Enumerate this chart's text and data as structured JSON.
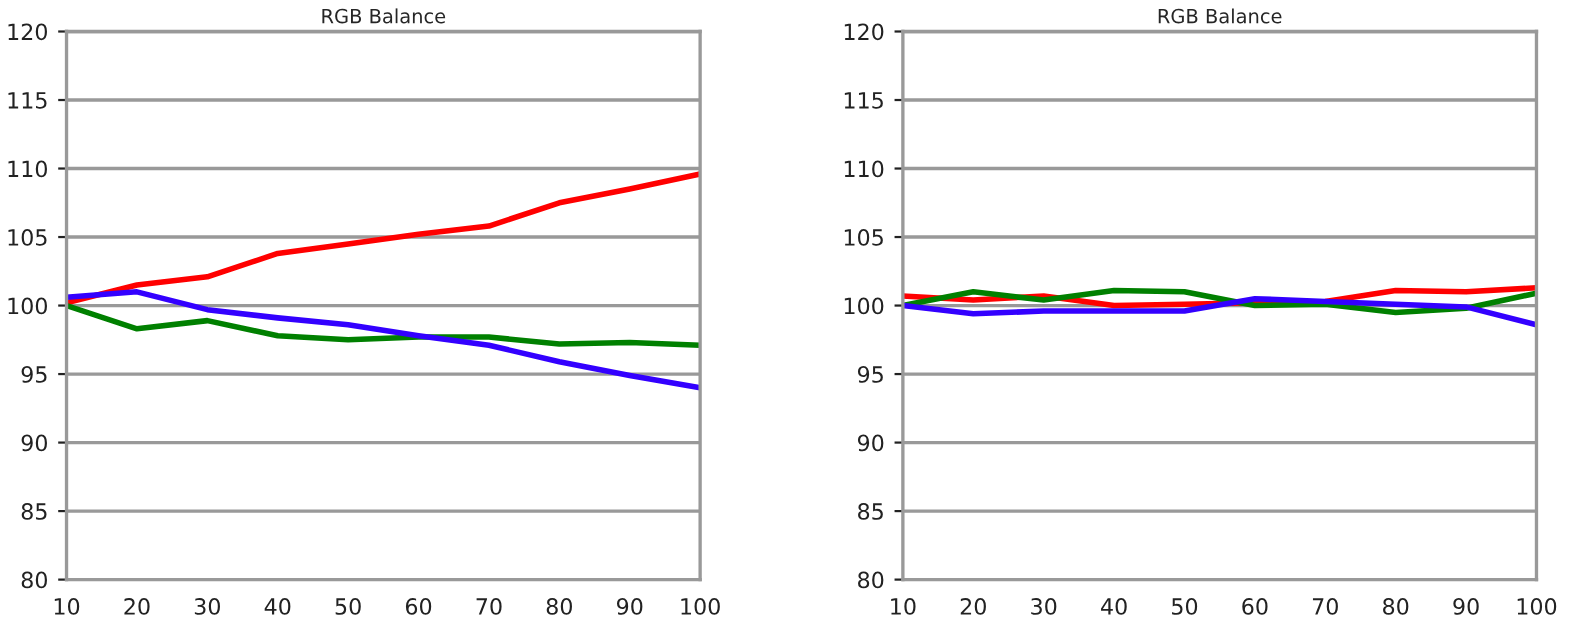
{
  "chart_data": [
    {
      "type": "line",
      "title": "RGB Balance",
      "x": [
        10,
        20,
        30,
        40,
        50,
        60,
        70,
        80,
        90,
        100
      ],
      "xlim": [
        10,
        100
      ],
      "xticks": [
        10,
        20,
        30,
        40,
        50,
        60,
        70,
        80,
        90,
        100
      ],
      "ylim": [
        80,
        120
      ],
      "yticks": [
        80,
        85,
        90,
        95,
        100,
        105,
        110,
        115,
        120
      ],
      "grid": "y",
      "legend": false,
      "series": [
        {
          "color": "#ff0000",
          "values": [
            100.2,
            101.5,
            102.1,
            103.8,
            104.5,
            105.2,
            105.8,
            107.5,
            108.5,
            109.6
          ]
        },
        {
          "color": "#008000",
          "values": [
            100.0,
            98.3,
            98.9,
            97.8,
            97.5,
            97.7,
            97.7,
            97.2,
            97.3,
            97.1
          ]
        },
        {
          "color": "#3300ff",
          "values": [
            100.6,
            101.0,
            99.7,
            99.1,
            98.6,
            97.8,
            97.1,
            95.9,
            94.9,
            94.0
          ]
        }
      ]
    },
    {
      "type": "line",
      "title": "RGB Balance",
      "x": [
        10,
        20,
        30,
        40,
        50,
        60,
        70,
        80,
        90,
        100
      ],
      "xlim": [
        10,
        100
      ],
      "xticks": [
        10,
        20,
        30,
        40,
        50,
        60,
        70,
        80,
        90,
        100
      ],
      "ylim": [
        80,
        120
      ],
      "yticks": [
        80,
        85,
        90,
        95,
        100,
        105,
        110,
        115,
        120
      ],
      "grid": "y",
      "legend": false,
      "series": [
        {
          "color": "#ff0000",
          "values": [
            100.7,
            100.4,
            100.7,
            100.0,
            100.1,
            100.2,
            100.3,
            101.1,
            101.0,
            101.3
          ]
        },
        {
          "color": "#008000",
          "values": [
            100.0,
            101.0,
            100.4,
            101.1,
            101.0,
            100.0,
            100.1,
            99.5,
            99.8,
            100.9
          ]
        },
        {
          "color": "#3300ff",
          "values": [
            100.0,
            99.4,
            99.6,
            99.6,
            99.6,
            100.5,
            100.3,
            100.1,
            99.9,
            98.6
          ]
        }
      ]
    }
  ]
}
